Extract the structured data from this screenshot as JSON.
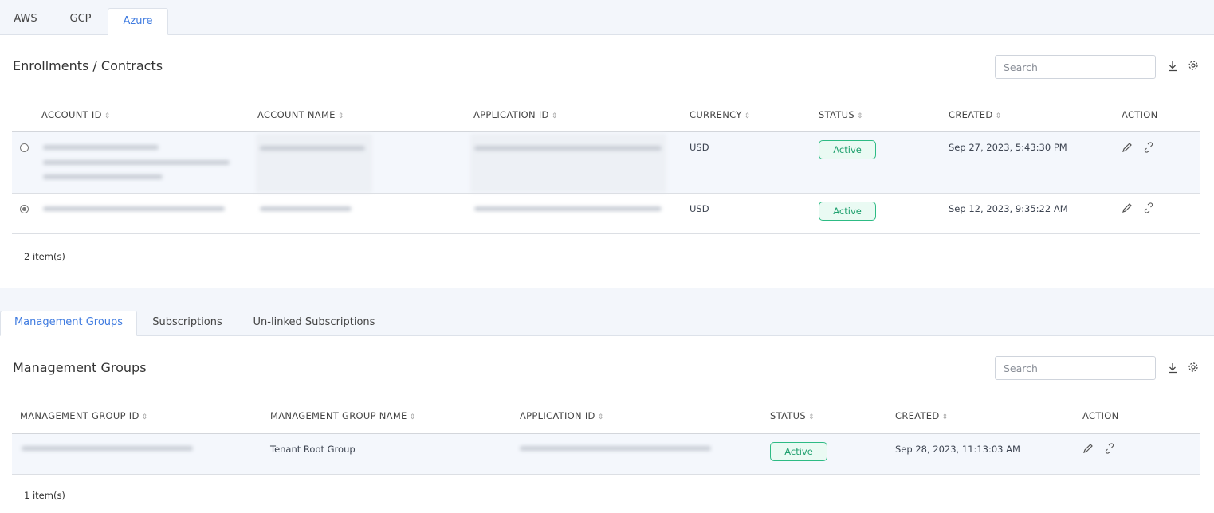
{
  "cloud_tabs": [
    {
      "label": "AWS",
      "active": false
    },
    {
      "label": "GCP",
      "active": false
    },
    {
      "label": "Azure",
      "active": true
    }
  ],
  "enrollments": {
    "title": "Enrollments / Contracts",
    "search_placeholder": "Search",
    "columns": [
      "ACCOUNT ID",
      "ACCOUNT NAME",
      "APPLICATION ID",
      "CURRENCY",
      "STATUS",
      "CREATED",
      "ACTION"
    ],
    "rows": [
      {
        "selected": false,
        "currency": "USD",
        "status": "Active",
        "created": "Sep 27, 2023, 5:43:30 PM"
      },
      {
        "selected": true,
        "currency": "USD",
        "status": "Active",
        "created": "Sep 12, 2023, 9:35:22 AM"
      }
    ],
    "count": "2 item(s)"
  },
  "sub_tabs": [
    {
      "label": "Management Groups",
      "active": true
    },
    {
      "label": "Subscriptions",
      "active": false
    },
    {
      "label": "Un-linked Subscriptions",
      "active": false
    }
  ],
  "management_groups": {
    "title": "Management Groups",
    "search_placeholder": "Search",
    "columns": [
      "MANAGEMENT GROUP ID",
      "MANAGEMENT GROUP NAME",
      "APPLICATION ID",
      "STATUS",
      "CREATED",
      "ACTION"
    ],
    "rows": [
      {
        "name": "Tenant Root Group",
        "status": "Active",
        "created": "Sep 28, 2023, 11:13:03 AM"
      }
    ],
    "count": "1 item(s)"
  },
  "colors": {
    "accent": "#3f7be0",
    "active_status": "#1fa06e"
  }
}
